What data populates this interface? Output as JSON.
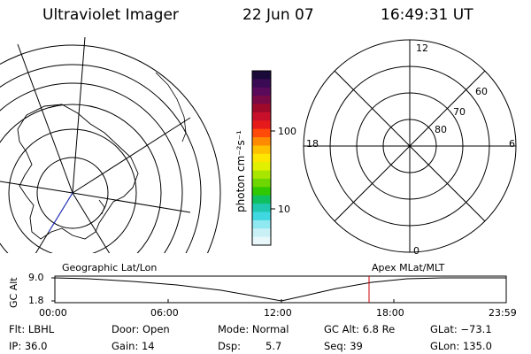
{
  "header": {
    "title": "Ultraviolet Imager",
    "date": "22 Jun 07",
    "time": "16:49:31 UT"
  },
  "panels": {
    "left_label": "Geographic Lat/Lon",
    "right_label": "Apex MLat/MLT"
  },
  "colorbar": {
    "label": "photon cm⁻²s⁻¹",
    "ticks": [
      "100",
      "10"
    ],
    "colors": [
      "#1a0a3a",
      "#3a0a55",
      "#5a0a5a",
      "#7a0a45",
      "#a00a2a",
      "#c8102a",
      "#e61a1a",
      "#ff4a0a",
      "#ff8a00",
      "#ffc000",
      "#ffe600",
      "#e0f000",
      "#a8e600",
      "#6ed600",
      "#30c800",
      "#10c060",
      "#20c8b0",
      "#40d8e0",
      "#90e8f0",
      "#c8f0f5",
      "#e8f8fa"
    ]
  },
  "polar": {
    "ticks_top": "12",
    "ticks_bottom": "0",
    "ticks_left": "18",
    "ticks_right": "6",
    "lat60": "60",
    "lat70": "70",
    "lat80": "80"
  },
  "altitude_chart": {
    "ylabel": "GC Alt",
    "y_hi": "9.0",
    "y_lo": "1.8",
    "xticks": [
      "00:00",
      "06:00",
      "12:00",
      "18:00",
      "23:59"
    ]
  },
  "info": {
    "flt": "Flt: LBHL",
    "ip": "IP: 36.0",
    "door": "Door: Open",
    "gain": "Gain: 14",
    "mode": "Mode: Normal",
    "dsp": "Dsp:",
    "dsp_val": "5.7",
    "gcalt": "GC Alt: 6.8 Re",
    "seq": "Seq: 39",
    "glat": "GLat: −73.1",
    "glon": "GLon: 135.0"
  }
}
